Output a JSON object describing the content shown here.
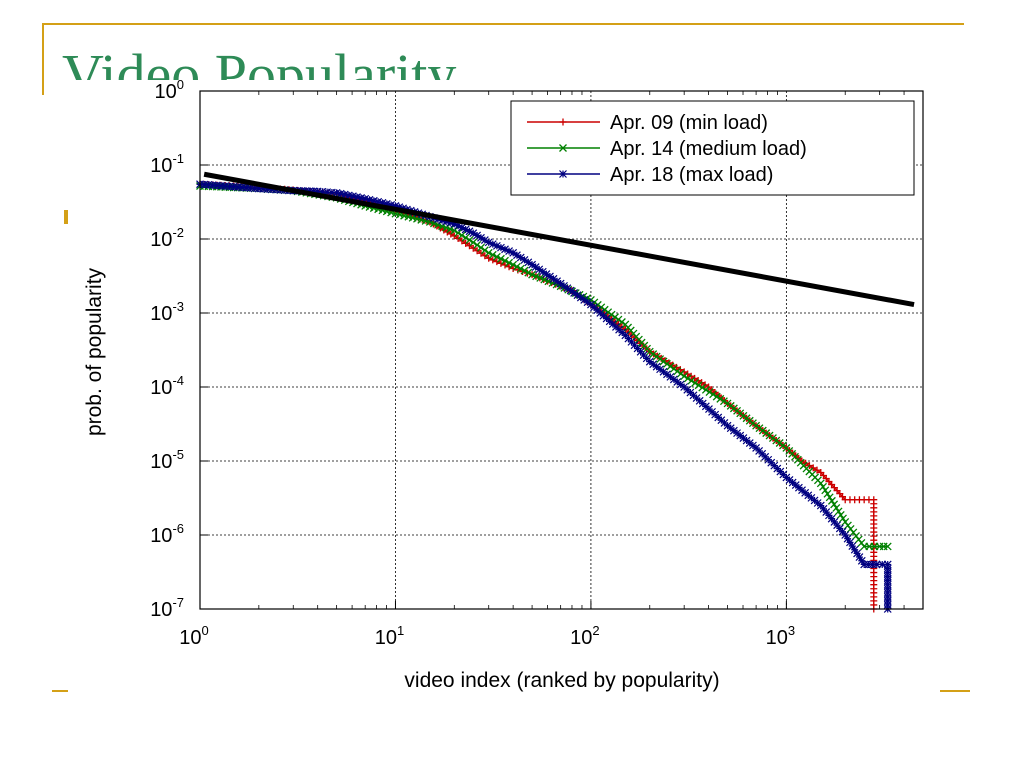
{
  "slide": {
    "title": "Video Popularity",
    "accent_color": "#D4A017",
    "title_color": "#2E8B57"
  },
  "chart_data": {
    "type": "line",
    "title": "",
    "xlabel": "video index (ranked by popularity)",
    "ylabel": "prob. of popularity",
    "xscale": "log",
    "yscale": "log",
    "xlim": [
      1,
      5000
    ],
    "ylim": [
      1e-07,
      1
    ],
    "x_ticks": [
      {
        "value": 1,
        "base": "10",
        "exp": "0"
      },
      {
        "value": 10,
        "base": "10",
        "exp": "1"
      },
      {
        "value": 100,
        "base": "10",
        "exp": "2"
      },
      {
        "value": 1000,
        "base": "10",
        "exp": "3"
      }
    ],
    "y_ticks": [
      {
        "value": 1,
        "base": "10",
        "exp": "0"
      },
      {
        "value": 0.1,
        "base": "10",
        "exp": "-1"
      },
      {
        "value": 0.01,
        "base": "10",
        "exp": "-2"
      },
      {
        "value": 0.001,
        "base": "10",
        "exp": "-3"
      },
      {
        "value": 0.0001,
        "base": "10",
        "exp": "-4"
      },
      {
        "value": 1e-05,
        "base": "10",
        "exp": "-5"
      },
      {
        "value": 1e-06,
        "base": "10",
        "exp": "-6"
      },
      {
        "value": 1e-07,
        "base": "10",
        "exp": "-7"
      }
    ],
    "grid": true,
    "legend_position": "top-right",
    "series": [
      {
        "name": "Apr. 09 (min load)",
        "color": "#CC0000",
        "marker": "plus",
        "x": [
          1,
          2,
          3,
          5,
          7,
          10,
          15,
          20,
          25,
          30,
          40,
          50,
          60,
          80,
          100,
          150,
          200,
          300,
          400,
          500,
          700,
          1000,
          1200,
          1500,
          2000,
          2500,
          2800,
          2800
        ],
        "y": [
          0.055,
          0.05,
          0.046,
          0.04,
          0.033,
          0.025,
          0.017,
          0.011,
          0.0075,
          0.0055,
          0.004,
          0.0033,
          0.0027,
          0.002,
          0.0013,
          0.0006,
          0.0003,
          0.00016,
          0.0001,
          6e-05,
          3e-05,
          1.5e-05,
          1e-05,
          7e-06,
          3e-06,
          3e-06,
          3e-06,
          1e-07
        ]
      },
      {
        "name": "Apr. 14 (medium load)",
        "color": "#008000",
        "marker": "x",
        "x": [
          1,
          2,
          3,
          5,
          7,
          10,
          15,
          20,
          25,
          30,
          40,
          50,
          70,
          100,
          150,
          200,
          300,
          500,
          700,
          1000,
          1500,
          2000,
          2500,
          3000,
          3300
        ],
        "y": [
          0.052,
          0.048,
          0.045,
          0.036,
          0.028,
          0.022,
          0.017,
          0.013,
          0.009,
          0.0065,
          0.0045,
          0.0033,
          0.0023,
          0.0015,
          0.0007,
          0.0003,
          0.00014,
          6e-05,
          3e-05,
          1.5e-05,
          5e-06,
          1.5e-06,
          7e-07,
          7e-07,
          7e-07
        ]
      },
      {
        "name": "Apr. 18 (max load)",
        "color": "#000080",
        "marker": "star",
        "x": [
          1,
          2,
          3,
          4,
          5,
          7,
          10,
          15,
          20,
          25,
          30,
          40,
          50,
          70,
          100,
          150,
          200,
          300,
          500,
          700,
          1000,
          1500,
          2000,
          2500,
          2900,
          3300,
          3300
        ],
        "y": [
          0.055,
          0.048,
          0.045,
          0.044,
          0.042,
          0.035,
          0.028,
          0.02,
          0.016,
          0.012,
          0.009,
          0.0065,
          0.0045,
          0.0025,
          0.0013,
          0.0005,
          0.00022,
          0.0001,
          3e-05,
          1.5e-05,
          6e-06,
          2.5e-06,
          1e-06,
          4e-07,
          4e-07,
          4e-07,
          1e-07
        ]
      }
    ],
    "reference_line": {
      "color": "#000000",
      "x": [
        1.05,
        4500
      ],
      "y": [
        0.075,
        0.0013
      ]
    }
  }
}
